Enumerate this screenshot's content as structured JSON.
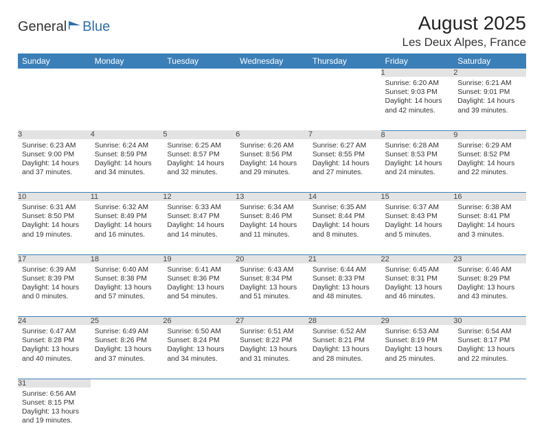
{
  "logo": {
    "general": "General",
    "blue": "Blue"
  },
  "header": {
    "month": "August 2025",
    "location": "Les Deux Alpes, France"
  },
  "colors": {
    "header_bg": "#3b7fb8",
    "header_fg": "#ffffff",
    "daynum_bg": "#e3e3e3",
    "rule": "#3b7fb8",
    "logo_blue": "#2f6fa8",
    "text": "#333333"
  },
  "day_headers": [
    "Sunday",
    "Monday",
    "Tuesday",
    "Wednesday",
    "Thursday",
    "Friday",
    "Saturday"
  ],
  "weeks": [
    [
      null,
      null,
      null,
      null,
      null,
      {
        "n": "1",
        "sr": "Sunrise: 6:20 AM",
        "ss": "Sunset: 9:03 PM",
        "dl": "Daylight: 14 hours and 42 minutes."
      },
      {
        "n": "2",
        "sr": "Sunrise: 6:21 AM",
        "ss": "Sunset: 9:01 PM",
        "dl": "Daylight: 14 hours and 39 minutes."
      }
    ],
    [
      {
        "n": "3",
        "sr": "Sunrise: 6:23 AM",
        "ss": "Sunset: 9:00 PM",
        "dl": "Daylight: 14 hours and 37 minutes."
      },
      {
        "n": "4",
        "sr": "Sunrise: 6:24 AM",
        "ss": "Sunset: 8:59 PM",
        "dl": "Daylight: 14 hours and 34 minutes."
      },
      {
        "n": "5",
        "sr": "Sunrise: 6:25 AM",
        "ss": "Sunset: 8:57 PM",
        "dl": "Daylight: 14 hours and 32 minutes."
      },
      {
        "n": "6",
        "sr": "Sunrise: 6:26 AM",
        "ss": "Sunset: 8:56 PM",
        "dl": "Daylight: 14 hours and 29 minutes."
      },
      {
        "n": "7",
        "sr": "Sunrise: 6:27 AM",
        "ss": "Sunset: 8:55 PM",
        "dl": "Daylight: 14 hours and 27 minutes."
      },
      {
        "n": "8",
        "sr": "Sunrise: 6:28 AM",
        "ss": "Sunset: 8:53 PM",
        "dl": "Daylight: 14 hours and 24 minutes."
      },
      {
        "n": "9",
        "sr": "Sunrise: 6:29 AM",
        "ss": "Sunset: 8:52 PM",
        "dl": "Daylight: 14 hours and 22 minutes."
      }
    ],
    [
      {
        "n": "10",
        "sr": "Sunrise: 6:31 AM",
        "ss": "Sunset: 8:50 PM",
        "dl": "Daylight: 14 hours and 19 minutes."
      },
      {
        "n": "11",
        "sr": "Sunrise: 6:32 AM",
        "ss": "Sunset: 8:49 PM",
        "dl": "Daylight: 14 hours and 16 minutes."
      },
      {
        "n": "12",
        "sr": "Sunrise: 6:33 AM",
        "ss": "Sunset: 8:47 PM",
        "dl": "Daylight: 14 hours and 14 minutes."
      },
      {
        "n": "13",
        "sr": "Sunrise: 6:34 AM",
        "ss": "Sunset: 8:46 PM",
        "dl": "Daylight: 14 hours and 11 minutes."
      },
      {
        "n": "14",
        "sr": "Sunrise: 6:35 AM",
        "ss": "Sunset: 8:44 PM",
        "dl": "Daylight: 14 hours and 8 minutes."
      },
      {
        "n": "15",
        "sr": "Sunrise: 6:37 AM",
        "ss": "Sunset: 8:43 PM",
        "dl": "Daylight: 14 hours and 5 minutes."
      },
      {
        "n": "16",
        "sr": "Sunrise: 6:38 AM",
        "ss": "Sunset: 8:41 PM",
        "dl": "Daylight: 14 hours and 3 minutes."
      }
    ],
    [
      {
        "n": "17",
        "sr": "Sunrise: 6:39 AM",
        "ss": "Sunset: 8:39 PM",
        "dl": "Daylight: 14 hours and 0 minutes."
      },
      {
        "n": "18",
        "sr": "Sunrise: 6:40 AM",
        "ss": "Sunset: 8:38 PM",
        "dl": "Daylight: 13 hours and 57 minutes."
      },
      {
        "n": "19",
        "sr": "Sunrise: 6:41 AM",
        "ss": "Sunset: 8:36 PM",
        "dl": "Daylight: 13 hours and 54 minutes."
      },
      {
        "n": "20",
        "sr": "Sunrise: 6:43 AM",
        "ss": "Sunset: 8:34 PM",
        "dl": "Daylight: 13 hours and 51 minutes."
      },
      {
        "n": "21",
        "sr": "Sunrise: 6:44 AM",
        "ss": "Sunset: 8:33 PM",
        "dl": "Daylight: 13 hours and 48 minutes."
      },
      {
        "n": "22",
        "sr": "Sunrise: 6:45 AM",
        "ss": "Sunset: 8:31 PM",
        "dl": "Daylight: 13 hours and 46 minutes."
      },
      {
        "n": "23",
        "sr": "Sunrise: 6:46 AM",
        "ss": "Sunset: 8:29 PM",
        "dl": "Daylight: 13 hours and 43 minutes."
      }
    ],
    [
      {
        "n": "24",
        "sr": "Sunrise: 6:47 AM",
        "ss": "Sunset: 8:28 PM",
        "dl": "Daylight: 13 hours and 40 minutes."
      },
      {
        "n": "25",
        "sr": "Sunrise: 6:49 AM",
        "ss": "Sunset: 8:26 PM",
        "dl": "Daylight: 13 hours and 37 minutes."
      },
      {
        "n": "26",
        "sr": "Sunrise: 6:50 AM",
        "ss": "Sunset: 8:24 PM",
        "dl": "Daylight: 13 hours and 34 minutes."
      },
      {
        "n": "27",
        "sr": "Sunrise: 6:51 AM",
        "ss": "Sunset: 8:22 PM",
        "dl": "Daylight: 13 hours and 31 minutes."
      },
      {
        "n": "28",
        "sr": "Sunrise: 6:52 AM",
        "ss": "Sunset: 8:21 PM",
        "dl": "Daylight: 13 hours and 28 minutes."
      },
      {
        "n": "29",
        "sr": "Sunrise: 6:53 AM",
        "ss": "Sunset: 8:19 PM",
        "dl": "Daylight: 13 hours and 25 minutes."
      },
      {
        "n": "30",
        "sr": "Sunrise: 6:54 AM",
        "ss": "Sunset: 8:17 PM",
        "dl": "Daylight: 13 hours and 22 minutes."
      }
    ],
    [
      {
        "n": "31",
        "sr": "Sunrise: 6:56 AM",
        "ss": "Sunset: 8:15 PM",
        "dl": "Daylight: 13 hours and 19 minutes."
      },
      null,
      null,
      null,
      null,
      null,
      null
    ]
  ]
}
